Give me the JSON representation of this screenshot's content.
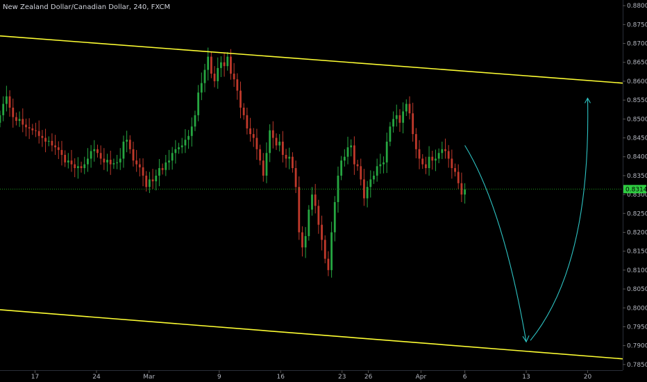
{
  "header": {
    "title": "New Zealand Dollar/Canadian Dollar, 240, FXCM"
  },
  "colors": {
    "background": "#000000",
    "bull": "#26a641",
    "bear": "#c0392b",
    "channel": "#ffff33",
    "projection": "#2ec4c4",
    "price_line": "#1fa01f",
    "price_tag_bg": "#2ecc40",
    "axis_text": "#b2b5be"
  },
  "chart_data": {
    "type": "candlestick",
    "title": "New Zealand Dollar/Canadian Dollar, 240, FXCM",
    "x_tick_labels": [
      "17",
      "24",
      "Mar",
      "9",
      "16",
      "23",
      "26",
      "Apr",
      "6",
      "13",
      "20"
    ],
    "x_tick_dates": [
      "2020-02-17",
      "2020-02-24",
      "2020-03-01",
      "2020-03-09",
      "2020-03-16",
      "2020-03-23",
      "2020-03-26",
      "2020-04-01",
      "2020-04-06",
      "2020-04-13",
      "2020-04-20"
    ],
    "y_tick_labels": [
      "0.88000",
      "0.87500",
      "0.87000",
      "0.86500",
      "0.86000",
      "0.85500",
      "0.85000",
      "0.84500",
      "0.84000",
      "0.83500",
      "0.83000",
      "0.82500",
      "0.82000",
      "0.81500",
      "0.81000",
      "0.80500",
      "0.80000",
      "0.79500",
      "0.79000",
      "0.78500"
    ],
    "ylim": [
      0.7835,
      0.8815
    ],
    "xlim": [
      "2020-02-13",
      "2020-04-24"
    ],
    "last_price": "0.83144",
    "last_price_value": 0.83144,
    "candles_close": [
      0.851,
      0.854,
      0.856,
      0.853,
      0.8505,
      0.8495,
      0.85,
      0.8485,
      0.8478,
      0.8475,
      0.847,
      0.8468,
      0.8455,
      0.845,
      0.844,
      0.8442,
      0.843,
      0.8425,
      0.8418,
      0.8405,
      0.8385,
      0.839,
      0.838,
      0.837,
      0.8375,
      0.837,
      0.838,
      0.8395,
      0.8415,
      0.842,
      0.841,
      0.8395,
      0.8385,
      0.8392,
      0.838,
      0.8383,
      0.8385,
      0.8395,
      0.844,
      0.8445,
      0.842,
      0.839,
      0.838,
      0.8372,
      0.835,
      0.832,
      0.834,
      0.8335,
      0.835,
      0.837,
      0.8365,
      0.8385,
      0.839,
      0.841,
      0.842,
      0.8425,
      0.843,
      0.8445,
      0.8455,
      0.848,
      0.851,
      0.857,
      0.8595,
      0.863,
      0.8665,
      0.862,
      0.86,
      0.8635,
      0.865,
      0.864,
      0.8665,
      0.862,
      0.8605,
      0.8575,
      0.853,
      0.851,
      0.8475,
      0.846,
      0.845,
      0.842,
      0.839,
      0.835,
      0.841,
      0.847,
      0.845,
      0.843,
      0.844,
      0.8405,
      0.8395,
      0.84,
      0.837,
      0.832,
      0.82,
      0.816,
      0.819,
      0.826,
      0.83,
      0.827,
      0.822,
      0.818,
      0.813,
      0.81,
      0.82,
      0.828,
      0.835,
      0.839,
      0.84,
      0.8425,
      0.843,
      0.838,
      0.8375,
      0.834,
      0.829,
      0.832,
      0.834,
      0.835,
      0.8375,
      0.838,
      0.8385,
      0.844,
      0.848,
      0.85,
      0.851,
      0.849,
      0.852,
      0.854,
      0.8515,
      0.846,
      0.842,
      0.8395,
      0.838,
      0.837,
      0.84,
      0.839,
      0.8395,
      0.841,
      0.842,
      0.8415,
      0.8395,
      0.837,
      0.836,
      0.833,
      0.83,
      0.8314
    ],
    "channel_upper": {
      "start": [
        "2020-02-13",
        0.872
      ],
      "end": [
        "2020-04-24",
        0.8595
      ]
    },
    "channel_lower": {
      "start": [
        "2020-02-13",
        0.7995
      ],
      "end": [
        "2020-04-24",
        0.7865
      ]
    },
    "projection_path": [
      [
        "2020-04-06",
        0.843
      ],
      [
        "2020-04-13",
        0.791
      ],
      [
        "2020-04-20",
        0.8555
      ]
    ]
  }
}
